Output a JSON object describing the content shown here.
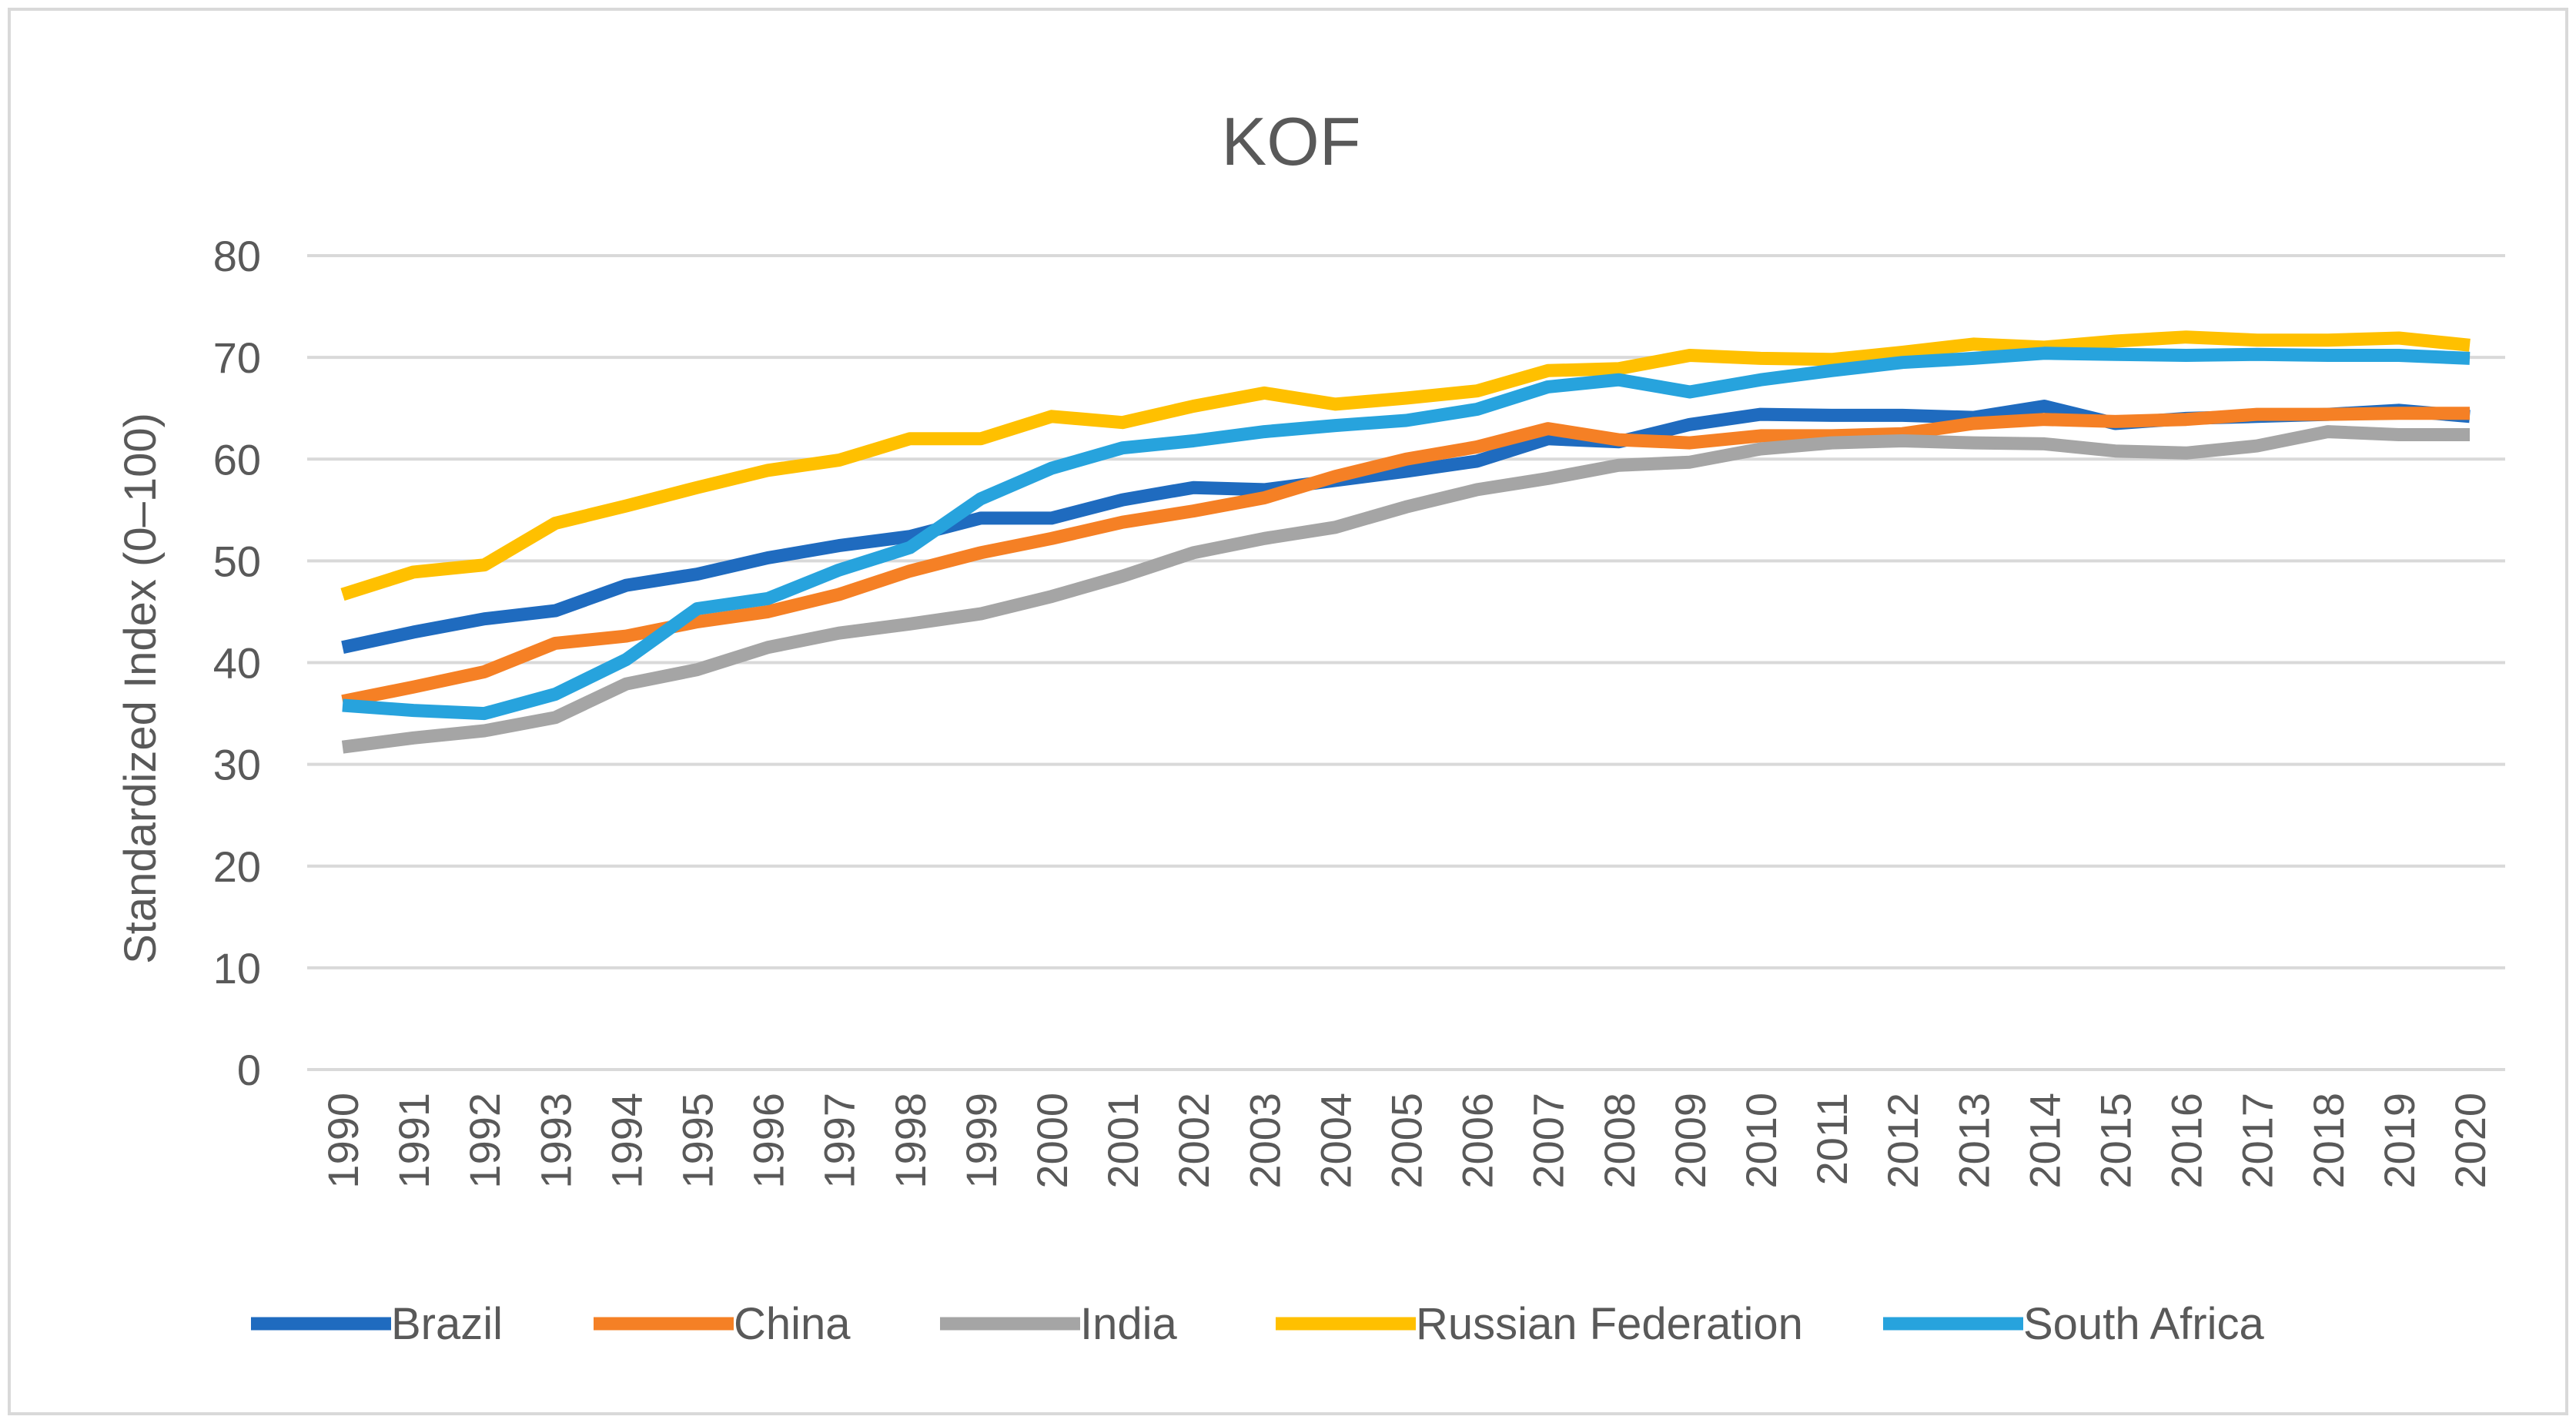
{
  "chart_data": {
    "type": "line",
    "title": "KOF",
    "xlabel": "",
    "ylabel": "Standardized Index (0–100)",
    "ylim": [
      0,
      80
    ],
    "yticks": [
      "0",
      "10",
      "20",
      "30",
      "40",
      "50",
      "60",
      "70",
      "80"
    ],
    "grid": true,
    "legend_position": "bottom",
    "categories": [
      "1990",
      "1991",
      "1992",
      "1993",
      "1994",
      "1995",
      "1996",
      "1997",
      "1998",
      "1999",
      "2000",
      "2001",
      "2002",
      "2003",
      "2004",
      "2005",
      "2006",
      "2007",
      "2008",
      "2009",
      "2010",
      "2011",
      "2012",
      "2013",
      "2014",
      "2015",
      "2016",
      "2017",
      "2018",
      "2019",
      "2020"
    ],
    "series": [
      {
        "name": "Brazil",
        "color": "#1f6bbf",
        "values": [
          41.5,
          43.0,
          44.3,
          45.1,
          47.6,
          48.7,
          50.3,
          51.5,
          52.4,
          54.2,
          54.2,
          56.0,
          57.2,
          57.0,
          57.9,
          58.8,
          59.8,
          62.0,
          61.7,
          63.4,
          64.4,
          64.3,
          64.3,
          64.1,
          65.2,
          63.5,
          64.0,
          64.2,
          64.4,
          64.8,
          64.2
        ]
      },
      {
        "name": "China",
        "color": "#f58025",
        "values": [
          36.2,
          37.6,
          39.1,
          41.9,
          42.6,
          44.0,
          45.0,
          46.7,
          49.0,
          50.8,
          52.2,
          53.8,
          54.9,
          56.2,
          58.3,
          60.0,
          61.2,
          63.0,
          61.9,
          61.6,
          62.3,
          62.3,
          62.5,
          63.5,
          63.9,
          63.7,
          63.9,
          64.4,
          64.4,
          64.5,
          64.5
        ]
      },
      {
        "name": "India",
        "color": "#a5a5a5",
        "values": [
          31.7,
          32.6,
          33.3,
          34.6,
          37.9,
          39.3,
          41.5,
          42.9,
          43.8,
          44.8,
          46.5,
          48.5,
          50.8,
          52.2,
          53.3,
          55.3,
          57.0,
          58.1,
          59.4,
          59.7,
          61.0,
          61.6,
          61.8,
          61.6,
          61.5,
          60.8,
          60.6,
          61.3,
          62.7,
          62.4,
          62.4
        ]
      },
      {
        "name": "Russian Federation",
        "color": "#ffc000",
        "values": [
          46.7,
          48.9,
          49.6,
          53.7,
          55.4,
          57.2,
          58.9,
          59.9,
          62.0,
          62.0,
          64.2,
          63.6,
          65.2,
          66.5,
          65.4,
          66.0,
          66.7,
          68.7,
          68.9,
          70.2,
          69.9,
          69.8,
          70.5,
          71.3,
          71.0,
          71.6,
          72.0,
          71.7,
          71.7,
          71.9,
          71.2
        ]
      },
      {
        "name": "South Africa",
        "color": "#27a3dd",
        "values": [
          35.8,
          35.3,
          35.0,
          36.9,
          40.3,
          45.3,
          46.3,
          49.1,
          51.3,
          56.1,
          59.1,
          61.1,
          61.8,
          62.7,
          63.3,
          63.8,
          64.9,
          67.1,
          67.8,
          66.6,
          67.8,
          68.7,
          69.5,
          69.9,
          70.4,
          70.3,
          70.2,
          70.3,
          70.2,
          70.2,
          69.9
        ]
      }
    ]
  }
}
